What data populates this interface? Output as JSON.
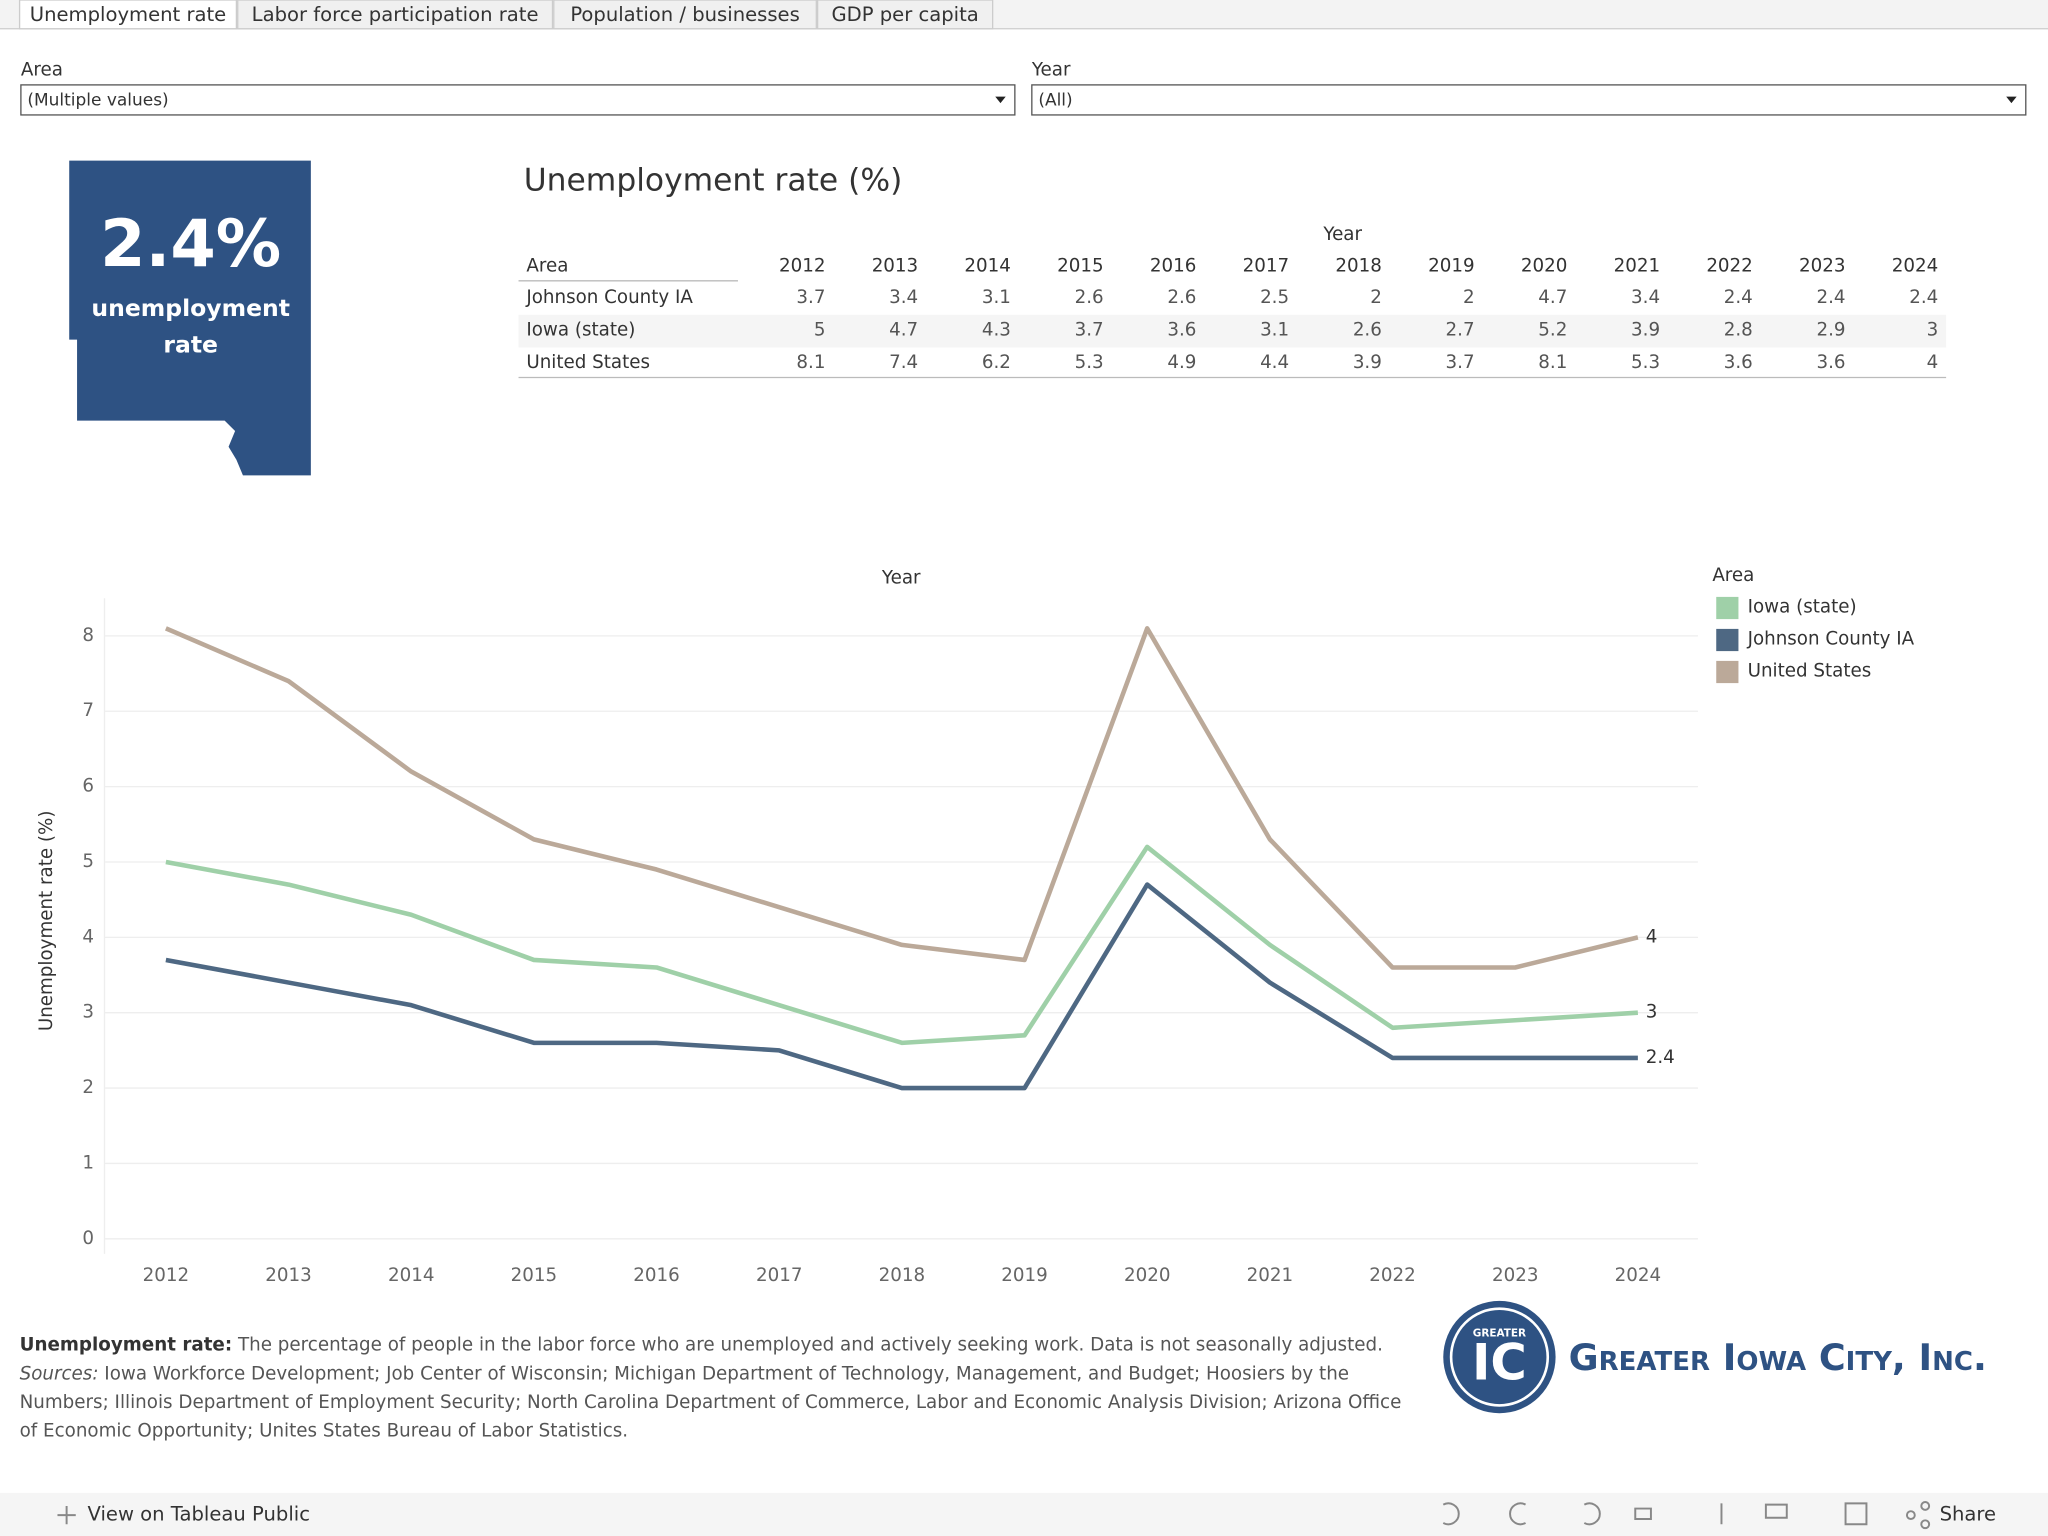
{
  "tabs": [
    "Unemployment rate",
    "Labor force participation rate",
    "Population / businesses",
    "GDP per capita"
  ],
  "filters": [
    {
      "label": "Area",
      "value": "(Multiple values)"
    },
    {
      "label": "Year",
      "value": "(All)"
    }
  ],
  "kpi": {
    "value": "2.4%",
    "label_lines": [
      "unemployment",
      "rate"
    ]
  },
  "table": {
    "title": "Unemployment rate (%)",
    "column_group": "Year",
    "row_header": "Area",
    "columns": [
      "2012",
      "2013",
      "2014",
      "2015",
      "2016",
      "2017",
      "2018",
      "2019",
      "2020",
      "2021",
      "2022",
      "2023",
      "2024"
    ],
    "rows": [
      [
        "Johnson County IA",
        3.7,
        3.4,
        3.1,
        2.6,
        2.6,
        2.5,
        2,
        2,
        4.7,
        3.4,
        2.4,
        2.4,
        2.4
      ],
      [
        "Iowa (state)",
        5,
        4.7,
        4.3,
        3.7,
        3.6,
        3.1,
        2.6,
        2.7,
        5.2,
        3.9,
        2.8,
        2.9,
        3
      ],
      [
        "United States",
        8.1,
        7.4,
        6.2,
        5.3,
        4.9,
        4.4,
        3.9,
        3.7,
        8.1,
        5.3,
        3.6,
        3.6,
        4
      ]
    ]
  },
  "chart_data": {
    "type": "line",
    "title": "Year",
    "y_label": "Unemployment rate (%)",
    "legend_title": "Area",
    "legend": "right",
    "categories": [
      "2012",
      "2013",
      "2014",
      "2015",
      "2016",
      "2017",
      "2018",
      "2019",
      "2020",
      "2021",
      "2022",
      "2023",
      "2024"
    ],
    "series": [
      {
        "name": "Iowa (state)",
        "color": "#9fd0a8",
        "values": [
          5,
          4.7,
          4.3,
          3.7,
          3.6,
          3.1,
          2.6,
          2.7,
          5.2,
          3.9,
          2.8,
          2.9,
          3
        ]
      },
      {
        "name": "Johnson County IA",
        "color": "#4e6883",
        "values": [
          3.7,
          3.4,
          3.1,
          2.6,
          2.6,
          2.5,
          2,
          2,
          4.7,
          3.4,
          2.4,
          2.4,
          2.4
        ]
      },
      {
        "name": "United States",
        "color": "#bba999",
        "values": [
          8.1,
          7.4,
          6.2,
          5.3,
          4.9,
          4.4,
          3.9,
          3.7,
          8.1,
          5.3,
          3.6,
          3.6,
          4
        ]
      }
    ],
    "ylim": [
      -0.2,
      8.5
    ],
    "yticks": [
      0,
      1,
      2,
      3,
      4,
      5,
      6,
      7,
      8
    ],
    "grid": true
  },
  "footer": {
    "term": "Unemployment rate:",
    "description": "The percentage of people in the labor force who are unemployed and actively seeking work. Data is not seasonally adjusted.",
    "sources_label": "Sources:",
    "sources": "Iowa Workforce Development; Job Center of Wisconsin; Michigan Department of Technology, Management, and Budget; Hoosiers by the Numbers; Illinois Department of Employment Security; North Carolina Department of Commerce, Labor and Economic Analysis Division; Arizona Office of Economic Opportunity; Unites States Bureau of Labor Statistics."
  },
  "logo": {
    "badge_top": "GREATER",
    "badge": "IC",
    "name": "Greater Iowa City, Inc."
  },
  "toolbar": {
    "view": "View on Tableau Public",
    "share": "Share"
  }
}
